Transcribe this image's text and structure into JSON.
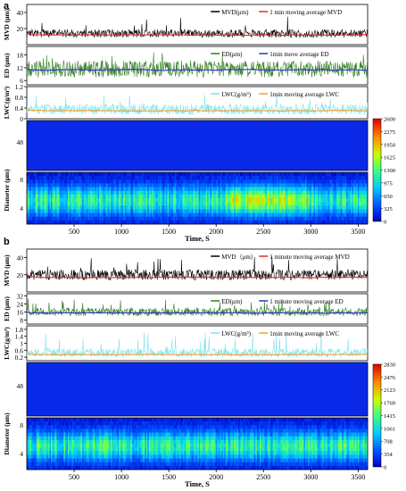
{
  "figure": {
    "panel_labels": [
      "a",
      "b"
    ]
  },
  "chart_data": [
    {
      "type": "line",
      "panel": "a",
      "ylabel": "MVD (μm)",
      "yticks": [
        20,
        40
      ],
      "ylim": [
        0,
        50
      ],
      "xlim": [
        0,
        3600
      ],
      "legend": [
        "MVD(μm)",
        "1 min moving average MVD"
      ],
      "series": [
        {
          "name": "MVD(μm)",
          "color": "#000000",
          "mean": 14,
          "spread": 5,
          "spike": 35
        },
        {
          "name": "1 min moving average MVD",
          "color": "#e8282b",
          "mean": 12
        }
      ]
    },
    {
      "type": "line",
      "panel": "a",
      "ylabel": "ED (μm)",
      "yticks": [
        6,
        12,
        18
      ],
      "ylim": [
        4,
        22
      ],
      "xlim": [
        0,
        3600
      ],
      "legend": [
        "ED(μm)",
        "1min move average ED"
      ],
      "series": [
        {
          "name": "ED(μm)",
          "color": "#2e7d1e",
          "mean": 11.5,
          "spread": 4,
          "spike": 20
        },
        {
          "name": "1min move average ED",
          "color": "#2a35c9",
          "mean": 11
        }
      ]
    },
    {
      "type": "line",
      "panel": "a",
      "ylabel": "LWC(g/m³)",
      "yticks": [
        0.0,
        0.4,
        0.8,
        1.2
      ],
      "ylim": [
        0,
        1.2
      ],
      "xlim": [
        0,
        3600
      ],
      "legend": [
        "LWC(g/m³)",
        "1min moving average LWC"
      ],
      "series": [
        {
          "name": "LWC(g/m³)",
          "color": "#7fe3ee",
          "mean": 0.35,
          "spread": 0.2,
          "spike": 1.0
        },
        {
          "name": "1min moving average LWC",
          "color": "#f0a030",
          "mean": 0.3
        }
      ]
    },
    {
      "type": "heatmap",
      "panel": "a",
      "ylabel": "Diameter (μm)",
      "yticks_top": [
        48
      ],
      "yticks_bottom": [
        4,
        8
      ],
      "xlabel": "Time, S",
      "xticks": [
        500,
        1000,
        1500,
        2000,
        2500,
        3000,
        3500
      ],
      "xlim": [
        0,
        3600
      ],
      "colorbar_ticks": [
        0,
        325,
        650,
        975,
        1300,
        1625,
        1950,
        2275,
        2600
      ],
      "vmax": 2600
    },
    {
      "type": "line",
      "panel": "b",
      "ylabel": "MVD (μm)",
      "yticks": [
        20,
        40
      ],
      "ylim": [
        0,
        50
      ],
      "xlim": [
        0,
        3600
      ],
      "legend": [
        "MVD（μm）",
        "1 minute moving average MVD"
      ],
      "series": [
        {
          "name": "MVD（μm）",
          "color": "#000000",
          "mean": 20,
          "spread": 6,
          "spike": 42
        },
        {
          "name": "1 minute moving average MVD",
          "color": "#e8282b",
          "mean": 17
        }
      ]
    },
    {
      "type": "line",
      "panel": "b",
      "ylabel": "ED (μm)",
      "yticks": [
        8,
        16,
        24,
        32
      ],
      "ylim": [
        4,
        34
      ],
      "xlim": [
        0,
        3600
      ],
      "legend": [
        "ED(μm)",
        "1 minute moving average ED"
      ],
      "series": [
        {
          "name": "ED(μm)",
          "color": "#2e7d1e",
          "mean": 16,
          "spread": 4,
          "spike": 30
        },
        {
          "name": "1 minute moving average ED",
          "color": "#2a35c9",
          "mean": 15
        }
      ]
    },
    {
      "type": "line",
      "panel": "b",
      "ylabel": "LWC(g/m³)",
      "yticks": [
        0.2,
        0.6,
        1.0,
        1.4,
        1.8
      ],
      "ylim": [
        0,
        2.0
      ],
      "xlim": [
        0,
        3600
      ],
      "legend": [
        "LWC(g/m³)",
        "1min moving average LWC"
      ],
      "series": [
        {
          "name": "LWC(g/m³)",
          "color": "#7fe3ee",
          "mean": 0.45,
          "spread": 0.25,
          "spike": 1.8
        },
        {
          "name": "1min moving average LWC",
          "color": "#f0a030",
          "mean": 0.35
        }
      ]
    },
    {
      "type": "heatmap",
      "panel": "b",
      "ylabel": "Diameter (μm)",
      "yticks_top": [
        48
      ],
      "yticks_bottom": [
        4,
        8
      ],
      "xlabel": "Time, S",
      "xticks": [
        500,
        1000,
        1500,
        2000,
        2500,
        3000,
        3500
      ],
      "xlim": [
        0,
        3600
      ],
      "colorbar_ticks": [
        0,
        354,
        708,
        1061,
        1415,
        1769,
        2123,
        2476,
        2830
      ],
      "vmax": 2830
    }
  ]
}
